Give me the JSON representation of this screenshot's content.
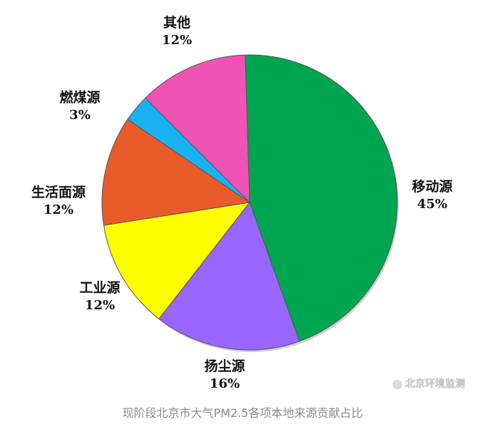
{
  "chart_data": {
    "type": "pie",
    "title": "",
    "slices": [
      {
        "label": "移动源",
        "value": 45,
        "display": "45%",
        "color": "#00a550"
      },
      {
        "label": "扬尘源",
        "value": 16,
        "display": "16%",
        "color": "#9966ff"
      },
      {
        "label": "工业源",
        "value": 12,
        "display": "12%",
        "color": "#ffff00"
      },
      {
        "label": "生活面源",
        "value": 12,
        "display": "12%",
        "color": "#ea5b2a"
      },
      {
        "label": "燃煤源",
        "value": 3,
        "display": "3%",
        "color": "#1ab2f0"
      },
      {
        "label": "其他",
        "value": 12,
        "display": "12%",
        "color": "#f052b5"
      }
    ],
    "legend": "none",
    "start": "top, clockwise"
  },
  "watermark": {
    "text": "北京环境监测",
    "icon": "weibo-icon"
  },
  "caption": "现阶段北京市大气PM2.5各项本地来源贡献占比"
}
